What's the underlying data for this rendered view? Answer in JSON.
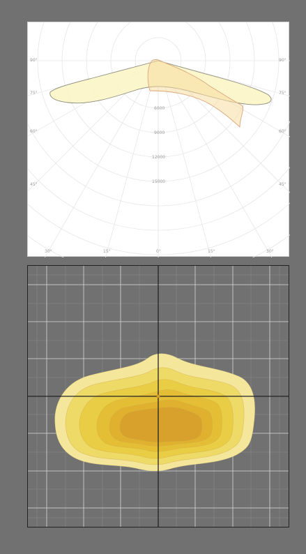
{
  "polar_diagram": {
    "angle_labels": {
      "left": [
        "90°",
        "75°",
        "60°",
        "45°"
      ],
      "right": [
        "90°",
        "75°",
        "60°",
        "45°"
      ],
      "bottom": [
        "30°",
        "15°",
        "0°",
        "15°",
        "30°"
      ]
    },
    "radial_labels": [
      "6000",
      "9000",
      "12000",
      "15000"
    ],
    "curve_colors": {
      "c0_fill": "#fbf5c4",
      "c0_stroke": "#8a8a78",
      "c90_fill": "#f7dca0",
      "c90_stroke": "#d9a57a"
    }
  },
  "isolux_diagram": {
    "background": "#717171",
    "grid_color": "#d9d9d9",
    "axis_color": "#222222",
    "contour_colors": [
      "#f4e79c",
      "#eeda67",
      "#e9cd45",
      "#e4bf35",
      "#dfb12f",
      "#d8a12c"
    ]
  }
}
